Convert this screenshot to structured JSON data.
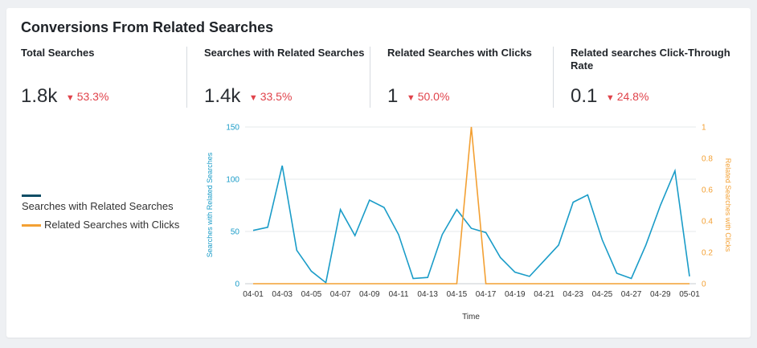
{
  "title": "Conversions From Related Searches",
  "kpis": [
    {
      "label": "Total Searches",
      "value": "1.8k",
      "delta": "53.3%",
      "direction": "down"
    },
    {
      "label": "Searches with Related Searches",
      "value": "1.4k",
      "delta": "33.5%",
      "direction": "down"
    },
    {
      "label": "Related Searches with Clicks",
      "value": "1",
      "delta": "50.0%",
      "direction": "down"
    },
    {
      "label": "Related searches Click-Through Rate",
      "value": "0.1",
      "delta": "24.8%",
      "direction": "down"
    }
  ],
  "legend": {
    "series1_label": "Searches with Related Searches",
    "series2_label": "Related Searches with Clicks"
  },
  "colors": {
    "series1_line": "#1a9cc8",
    "series1_legend": "#0f4d66",
    "series2": "#f3a033",
    "negative": "#e0434b",
    "grid": "#e6e8eb"
  },
  "chart_data": {
    "type": "line",
    "xlabel": "Time",
    "ylabel_left": "Searches with Related Searches",
    "ylabel_right": "Related Searches with Clicks",
    "ylim_left": [
      0,
      150
    ],
    "ylim_right": [
      0,
      1
    ],
    "yticks_left": [
      "0",
      "50",
      "100",
      "150"
    ],
    "yticks_right": [
      "0",
      "0.2",
      "0.4",
      "0.6",
      "0.8",
      "1"
    ],
    "x": [
      "04-01",
      "04-02",
      "04-03",
      "04-04",
      "04-05",
      "04-06",
      "04-07",
      "04-08",
      "04-09",
      "04-10",
      "04-11",
      "04-12",
      "04-13",
      "04-14",
      "04-15",
      "04-16",
      "04-17",
      "04-18",
      "04-19",
      "04-20",
      "04-21",
      "04-22",
      "04-23",
      "04-24",
      "04-25",
      "04-26",
      "04-27",
      "04-28",
      "04-29",
      "04-30",
      "05-01"
    ],
    "xtick_labels": [
      "04-01",
      "04-03",
      "04-05",
      "04-07",
      "04-09",
      "04-11",
      "04-13",
      "04-15",
      "04-17",
      "04-19",
      "04-21",
      "04-23",
      "04-25",
      "04-27",
      "04-29",
      "05-01"
    ],
    "series": [
      {
        "name": "Searches with Related Searches",
        "axis": "left",
        "values": [
          51,
          54,
          113,
          32,
          12,
          1,
          71,
          46,
          80,
          73,
          47,
          5,
          6,
          47,
          71,
          53,
          49,
          25,
          11,
          7,
          22,
          37,
          78,
          85,
          42,
          10,
          5,
          37,
          75,
          108,
          7
        ]
      },
      {
        "name": "Related Searches with Clicks",
        "axis": "right",
        "values": [
          0,
          0,
          0,
          0,
          0,
          0,
          0,
          0,
          0,
          0,
          0,
          0,
          0,
          0,
          0,
          1,
          0,
          0,
          0,
          0,
          0,
          0,
          0,
          0,
          0,
          0,
          0,
          0,
          0,
          0,
          0
        ]
      }
    ]
  }
}
